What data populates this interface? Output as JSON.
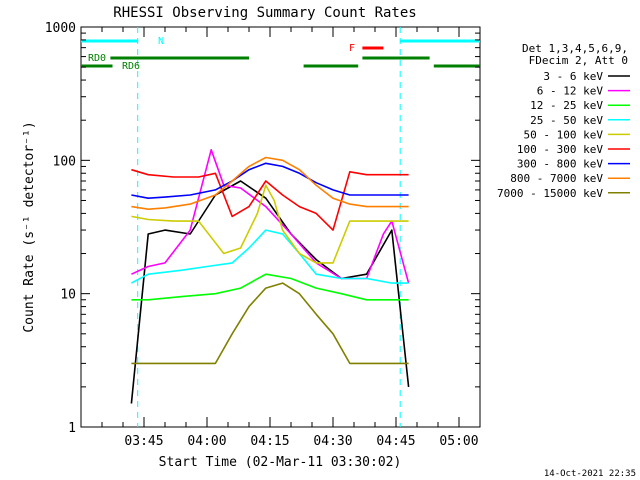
{
  "chart_data": {
    "type": "line",
    "title": "RHESSI Observing Summary Count Rates",
    "xlabel": "Start Time (02-Mar-11 03:30:02)",
    "ylabel": "Count Rate (s⁻¹ detector⁻¹)",
    "y_scale": "log",
    "ylim": [
      1,
      1000
    ],
    "xlim_minutes": [
      0,
      95
    ],
    "x_ticks": [
      "03:45",
      "04:00",
      "04:15",
      "04:30",
      "04:45",
      "05:00"
    ],
    "y_ticks": [
      "1",
      "10",
      "100",
      "1000"
    ],
    "legend_header": [
      "Det 1,3,4,5,6,9,",
      "FDecim 2, Att 0"
    ],
    "legend_position": "top-right",
    "footer": "14-Oct-2021 22:35",
    "annotations": {
      "night_label": "N",
      "flare_label": "F",
      "rd0_label": "RD0",
      "rd6_label": "RD6"
    },
    "series": [
      {
        "name": "3 - 6 keV",
        "color": "#000000",
        "x": [
          12,
          16,
          20,
          26,
          32,
          38,
          44,
          50,
          56,
          62,
          68,
          74,
          78
        ],
        "y": [
          1.5,
          28,
          30,
          28,
          55,
          70,
          52,
          28,
          18,
          13,
          14,
          30,
          2
        ]
      },
      {
        "name": "6 - 12 keV",
        "color": "#ff00ff",
        "x": [
          12,
          16,
          20,
          26,
          31,
          34,
          38,
          44,
          50,
          56,
          62,
          68,
          72,
          74,
          78
        ],
        "y": [
          14,
          16,
          17,
          30,
          120,
          65,
          62,
          45,
          28,
          17,
          13,
          13,
          28,
          35,
          12
        ]
      },
      {
        "name": "12 - 25 keV",
        "color": "#00ff00",
        "x": [
          12,
          16,
          24,
          32,
          38,
          44,
          50,
          56,
          62,
          68,
          74,
          78
        ],
        "y": [
          9,
          9,
          9.5,
          10,
          11,
          14,
          13,
          11,
          10,
          9,
          9,
          9
        ]
      },
      {
        "name": "25 - 50 keV",
        "color": "#00ffff",
        "x": [
          12,
          16,
          24,
          30,
          36,
          40,
          44,
          48,
          52,
          56,
          62,
          68,
          74,
          78
        ],
        "y": [
          12,
          14,
          15,
          16,
          17,
          22,
          30,
          28,
          20,
          14,
          13,
          13,
          12,
          12
        ]
      },
      {
        "name": "50 - 100 keV",
        "color": "#cccc00",
        "x": [
          12,
          16,
          22,
          28,
          34,
          38,
          42,
          44,
          46,
          48,
          52,
          56,
          60,
          64,
          68,
          74,
          78
        ],
        "y": [
          38,
          36,
          35,
          35,
          20,
          22,
          40,
          65,
          50,
          30,
          20,
          17,
          17,
          35,
          35,
          35,
          35
        ]
      },
      {
        "name": "100 - 300 keV",
        "color": "#ff0000",
        "x": [
          12,
          16,
          22,
          28,
          32,
          36,
          40,
          44,
          48,
          52,
          56,
          60,
          64,
          68,
          72,
          76,
          78
        ],
        "y": [
          85,
          78,
          75,
          75,
          80,
          38,
          45,
          70,
          55,
          45,
          40,
          30,
          82,
          78,
          78,
          78,
          78
        ]
      },
      {
        "name": "300 - 800 keV",
        "color": "#0000ff",
        "x": [
          12,
          16,
          20,
          26,
          32,
          36,
          40,
          44,
          48,
          52,
          56,
          60,
          64,
          68,
          74,
          78
        ],
        "y": [
          55,
          52,
          53,
          55,
          60,
          70,
          85,
          95,
          90,
          80,
          68,
          60,
          55,
          55,
          55,
          55
        ]
      },
      {
        "name": "800 - 7000 keV",
        "color": "#ff8000",
        "x": [
          12,
          16,
          20,
          26,
          32,
          36,
          40,
          44,
          48,
          52,
          56,
          60,
          64,
          68,
          74,
          78
        ],
        "y": [
          45,
          43,
          44,
          47,
          55,
          70,
          90,
          105,
          100,
          85,
          65,
          52,
          47,
          45,
          45,
          45
        ]
      },
      {
        "name": "7000 - 15000 keV",
        "color": "#808000",
        "x": [
          12,
          16,
          22,
          28,
          32,
          36,
          40,
          44,
          48,
          52,
          56,
          60,
          64,
          68,
          74,
          78
        ],
        "y": [
          3,
          3,
          3,
          3,
          3,
          5,
          8,
          11,
          12,
          10,
          7,
          5,
          3,
          3,
          3,
          3
        ]
      }
    ],
    "state_bars": [
      {
        "label": "N",
        "color": "#00ffff",
        "segments": [
          [
            0,
            13.5
          ],
          [
            76,
            95
          ]
        ]
      },
      {
        "label": "F",
        "color": "#ff0000",
        "segments": [
          [
            67,
            72
          ]
        ]
      },
      {
        "label": "RD0",
        "color": "#008000",
        "segments": [
          [
            0,
            7.5
          ],
          [
            53,
            66
          ],
          [
            84,
            95
          ]
        ]
      },
      {
        "label": "RD6",
        "color": "#008000",
        "segments": [
          [
            7,
            40
          ],
          [
            67,
            83
          ]
        ]
      }
    ]
  }
}
